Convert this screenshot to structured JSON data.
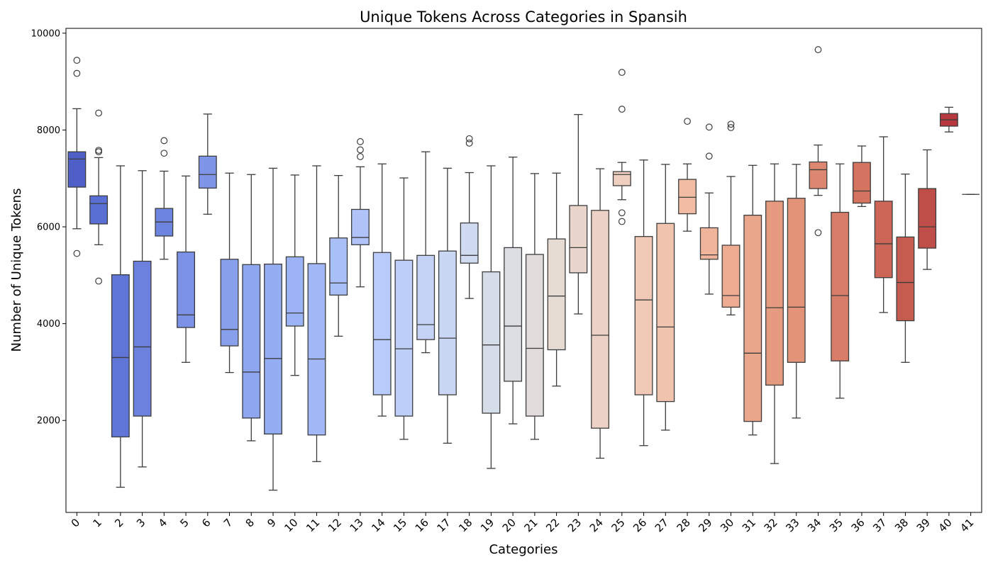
{
  "chart_data": {
    "type": "boxplot",
    "title": "Unique Tokens Across Categories in Spansih",
    "xlabel": "Categories",
    "ylabel": "Number of Unique Tokens",
    "ylim": [
      100,
      10100
    ],
    "yticks": [
      2000,
      4000,
      6000,
      8000,
      10000
    ],
    "grid": false,
    "palette": "coolwarm",
    "boxes": [
      {
        "category": "0",
        "whislo": 5960,
        "q1": 6820,
        "med": 7400,
        "q3": 7550,
        "whishi": 8440,
        "fliers": [
          9440,
          9170,
          5450
        ],
        "color": "#4e60c8"
      },
      {
        "category": "1",
        "whislo": 5630,
        "q1": 6060,
        "med": 6480,
        "q3": 6640,
        "whishi": 7430,
        "fliers": [
          8350,
          7580,
          7550,
          4880
        ],
        "color": "#5a6fd3"
      },
      {
        "category": "2",
        "whislo": 620,
        "q1": 1660,
        "med": 3300,
        "q3": 5010,
        "whishi": 7260,
        "fliers": [],
        "color": "#5f75d7"
      },
      {
        "category": "3",
        "whislo": 1040,
        "q1": 2090,
        "med": 3520,
        "q3": 5290,
        "whishi": 7160,
        "fliers": [],
        "color": "#6b81dd"
      },
      {
        "category": "4",
        "whislo": 5330,
        "q1": 5810,
        "med": 6100,
        "q3": 6380,
        "whishi": 7150,
        "fliers": [
          7780,
          7520
        ],
        "color": "#6e85e0"
      },
      {
        "category": "5",
        "whislo": 3200,
        "q1": 3920,
        "med": 4180,
        "q3": 5480,
        "whishi": 7050,
        "fliers": [],
        "color": "#7b92e6"
      },
      {
        "category": "6",
        "whislo": 6260,
        "q1": 6800,
        "med": 7080,
        "q3": 7460,
        "whishi": 8330,
        "fliers": [],
        "color": "#7f96e8"
      },
      {
        "category": "7",
        "whislo": 2990,
        "q1": 3540,
        "med": 3880,
        "q3": 5330,
        "whishi": 7110,
        "fliers": [],
        "color": "#88a0ec"
      },
      {
        "category": "8",
        "whislo": 1580,
        "q1": 2050,
        "med": 3000,
        "q3": 5220,
        "whishi": 7080,
        "fliers": [],
        "color": "#8ea6ef"
      },
      {
        "category": "9",
        "whislo": 560,
        "q1": 1720,
        "med": 3280,
        "q3": 5230,
        "whishi": 7210,
        "fliers": [],
        "color": "#95adf2"
      },
      {
        "category": "10",
        "whislo": 2930,
        "q1": 3950,
        "med": 4220,
        "q3": 5380,
        "whishi": 7070,
        "fliers": [],
        "color": "#9cb3f5"
      },
      {
        "category": "11",
        "whislo": 1150,
        "q1": 1700,
        "med": 3270,
        "q3": 5240,
        "whishi": 7260,
        "fliers": [],
        "color": "#a2b8f6"
      },
      {
        "category": "12",
        "whislo": 3740,
        "q1": 4590,
        "med": 4840,
        "q3": 5770,
        "whishi": 7060,
        "fliers": [],
        "color": "#a9bff8"
      },
      {
        "category": "13",
        "whislo": 4760,
        "q1": 5630,
        "med": 5780,
        "q3": 6360,
        "whishi": 7240,
        "fliers": [
          7760,
          7590,
          7450
        ],
        "color": "#afc3f9"
      },
      {
        "category": "14",
        "whislo": 2090,
        "q1": 2530,
        "med": 3670,
        "q3": 5470,
        "whishi": 7300,
        "fliers": [],
        "color": "#b8cbfa"
      },
      {
        "category": "15",
        "whislo": 1610,
        "q1": 2090,
        "med": 3480,
        "q3": 5310,
        "whishi": 7010,
        "fliers": [],
        "color": "#bdcef9"
      },
      {
        "category": "16",
        "whislo": 3400,
        "q1": 3670,
        "med": 3980,
        "q3": 5410,
        "whishi": 7550,
        "fliers": [],
        "color": "#c4d2f6"
      },
      {
        "category": "17",
        "whislo": 1530,
        "q1": 2530,
        "med": 3700,
        "q3": 5500,
        "whishi": 7210,
        "fliers": [],
        "color": "#cad7f4"
      },
      {
        "category": "18",
        "whislo": 4520,
        "q1": 5250,
        "med": 5410,
        "q3": 6080,
        "whishi": 7120,
        "fliers": [
          7820,
          7730
        ],
        "color": "#d0dbf2"
      },
      {
        "category": "19",
        "whislo": 1010,
        "q1": 2150,
        "med": 3560,
        "q3": 5070,
        "whishi": 7260,
        "fliers": [],
        "color": "#d5dde9"
      },
      {
        "category": "20",
        "whislo": 1930,
        "q1": 2810,
        "med": 3950,
        "q3": 5570,
        "whishi": 7440,
        "fliers": [],
        "color": "#dcdde2"
      },
      {
        "category": "21",
        "whislo": 1610,
        "q1": 2090,
        "med": 3490,
        "q3": 5430,
        "whishi": 7100,
        "fliers": [],
        "color": "#e1dcda"
      },
      {
        "category": "22",
        "whislo": 2710,
        "q1": 3460,
        "med": 4570,
        "q3": 5750,
        "whishi": 7110,
        "fliers": [],
        "color": "#e6dbd3"
      },
      {
        "category": "23",
        "whislo": 4200,
        "q1": 5050,
        "med": 5570,
        "q3": 6440,
        "whishi": 8320,
        "fliers": [],
        "color": "#e9d5cb"
      },
      {
        "category": "24",
        "whislo": 1220,
        "q1": 1840,
        "med": 3760,
        "q3": 6340,
        "whishi": 7200,
        "fliers": [],
        "color": "#ecd2c6"
      },
      {
        "category": "25",
        "whislo": 6560,
        "q1": 6850,
        "med": 7080,
        "q3": 7140,
        "whishi": 7330,
        "fliers": [
          9190,
          8430,
          6290,
          6110
        ],
        "color": "#efcfbf"
      },
      {
        "category": "26",
        "whislo": 1480,
        "q1": 2530,
        "med": 4490,
        "q3": 5800,
        "whishi": 7380,
        "fliers": [],
        "color": "#f0c9b6"
      },
      {
        "category": "27",
        "whislo": 1800,
        "q1": 2390,
        "med": 3930,
        "q3": 6070,
        "whishi": 7290,
        "fliers": [],
        "color": "#f1c4af"
      },
      {
        "category": "28",
        "whislo": 5910,
        "q1": 6270,
        "med": 6610,
        "q3": 6980,
        "whishi": 7300,
        "fliers": [
          8180
        ],
        "color": "#f2bca4"
      },
      {
        "category": "29",
        "whislo": 4610,
        "q1": 5330,
        "med": 5420,
        "q3": 5980,
        "whishi": 6700,
        "fliers": [
          8060,
          7460
        ],
        "color": "#f0b49b"
      },
      {
        "category": "30",
        "whislo": 4180,
        "q1": 4340,
        "med": 4580,
        "q3": 5620,
        "whishi": 7040,
        "fliers": [
          8120,
          8050
        ],
        "color": "#edac92"
      },
      {
        "category": "31",
        "whislo": 1700,
        "q1": 1980,
        "med": 3390,
        "q3": 6240,
        "whishi": 7270,
        "fliers": [],
        "color": "#eaa68b"
      },
      {
        "category": "32",
        "whislo": 1110,
        "q1": 2730,
        "med": 4330,
        "q3": 6530,
        "whishi": 7300,
        "fliers": [],
        "color": "#e69b80"
      },
      {
        "category": "33",
        "whislo": 2050,
        "q1": 3200,
        "med": 4340,
        "q3": 6590,
        "whishi": 7290,
        "fliers": [],
        "color": "#e29378"
      },
      {
        "category": "34",
        "whislo": 6650,
        "q1": 6790,
        "med": 7180,
        "q3": 7340,
        "whishi": 7690,
        "fliers": [
          9660,
          5880
        ],
        "color": "#dd8670"
      },
      {
        "category": "35",
        "whislo": 2460,
        "q1": 3230,
        "med": 4580,
        "q3": 6300,
        "whishi": 7300,
        "fliers": [],
        "color": "#d87d69"
      },
      {
        "category": "36",
        "whislo": 6420,
        "q1": 6490,
        "med": 6740,
        "q3": 7330,
        "whishi": 7670,
        "fliers": [],
        "color": "#d47460"
      },
      {
        "category": "37",
        "whislo": 4230,
        "q1": 4950,
        "med": 5650,
        "q3": 6530,
        "whishi": 7860,
        "fliers": [],
        "color": "#cd6657"
      },
      {
        "category": "38",
        "whislo": 3200,
        "q1": 4060,
        "med": 4850,
        "q3": 5790,
        "whishi": 7090,
        "fliers": [],
        "color": "#c65b50"
      },
      {
        "category": "39",
        "whislo": 5120,
        "q1": 5560,
        "med": 6000,
        "q3": 6790,
        "whishi": 7590,
        "fliers": [],
        "color": "#bf4e48"
      },
      {
        "category": "40",
        "whislo": 7960,
        "q1": 8080,
        "med": 8210,
        "q3": 8340,
        "whishi": 8470,
        "fliers": [],
        "color": "#b6383e"
      },
      {
        "category": "41",
        "whislo": 6670,
        "q1": 6670,
        "med": 6670,
        "q3": 6670,
        "whishi": 6670,
        "fliers": [],
        "color": "#b40426"
      }
    ]
  }
}
